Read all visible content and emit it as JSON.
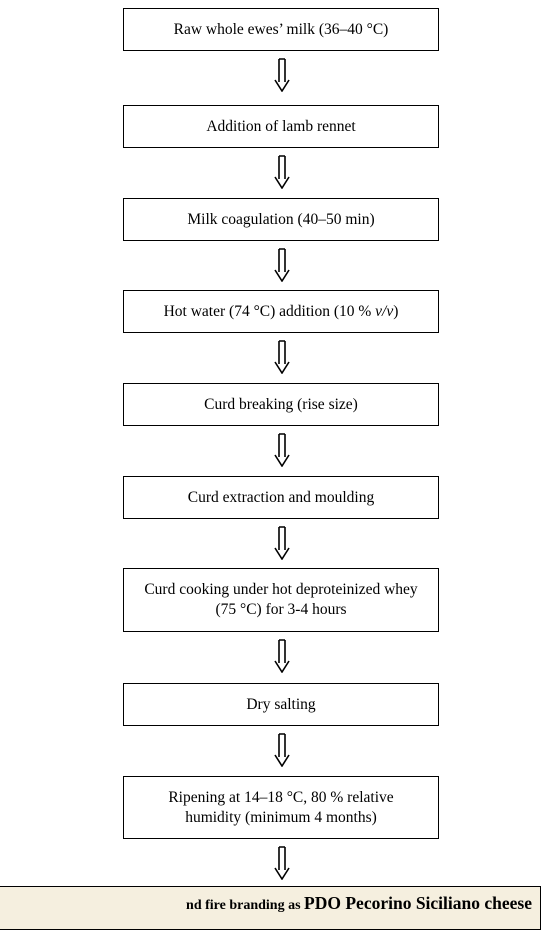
{
  "steps": [
    {
      "lines": [
        "Raw whole ewes’ milk (36–40 °C)"
      ]
    },
    {
      "lines": [
        "Addition of lamb rennet"
      ]
    },
    {
      "lines": [
        "Milk coagulation (40‒50 min)"
      ]
    },
    {
      "text": "Hot water (74 °C) addition (10 % ",
      "italic": "v/v",
      "end": ")"
    },
    {
      "lines": [
        "Curd breaking (rise size)"
      ]
    },
    {
      "lines": [
        "Curd extraction and moulding"
      ]
    },
    {
      "lines": [
        "Curd cooking under hot deproteinized whey",
        "(75 °C) for 3-4 hours"
      ]
    },
    {
      "lines": [
        "Dry salting"
      ]
    },
    {
      "lines": [
        "Ripening at 14–18 °C, 80 % relative",
        "humidity (minimum 4 months)"
      ]
    }
  ],
  "final": {
    "text": "nd fire branding as ",
    "emphasis": "PDO Pecorino Siciliano cheese"
  }
}
